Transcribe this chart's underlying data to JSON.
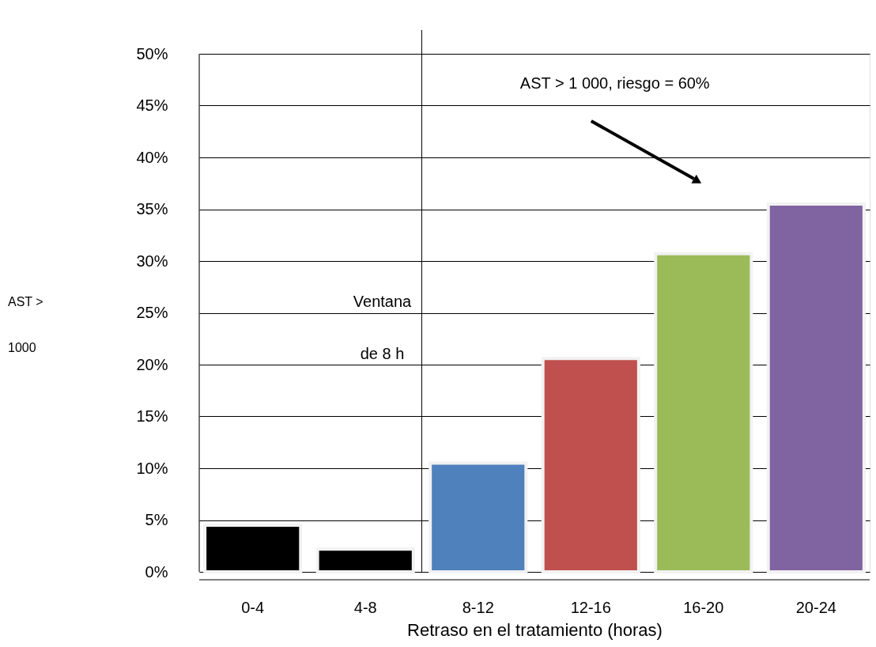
{
  "chart_data": {
    "type": "bar",
    "xlabel": "Retraso en el tratamiento (horas)",
    "ylabel": "AST > 1000",
    "categories": [
      "0-4",
      "4-8",
      "8-12",
      "12-16",
      "16-20",
      "20-24"
    ],
    "values": [
      4.5,
      2.2,
      10.5,
      20.6,
      30.7,
      35.5
    ],
    "colors": [
      "#000000",
      "#000000",
      "#4f81bd",
      "#c0504d",
      "#9bbb59",
      "#8064a2"
    ],
    "ylim": [
      0,
      50
    ],
    "yticks": [
      {
        "value": 0,
        "label": "0%"
      },
      {
        "value": 5,
        "label": "5%"
      },
      {
        "value": 10,
        "label": "10%"
      },
      {
        "value": 15,
        "label": "15%"
      },
      {
        "value": 20,
        "label": "20%"
      },
      {
        "value": 25,
        "label": "25%"
      },
      {
        "value": 30,
        "label": "30%"
      },
      {
        "value": 35,
        "label": "35%"
      },
      {
        "value": 40,
        "label": "40%"
      },
      {
        "value": 45,
        "label": "45%"
      },
      {
        "value": 50,
        "label": "50%"
      }
    ],
    "grid": "y",
    "annotations": [
      "Ventana de 8 h",
      "AST > 1 000, riesgo = 60%"
    ]
  }
}
